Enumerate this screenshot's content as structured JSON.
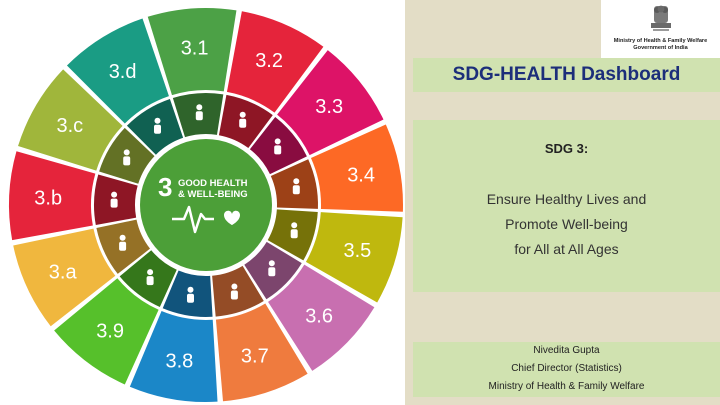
{
  "wheel": {
    "segments": [
      {
        "label": "3.1",
        "color": "#4ca146"
      },
      {
        "label": "3.2",
        "color": "#e5243b"
      },
      {
        "label": "3.3",
        "color": "#dd1367"
      },
      {
        "label": "3.4",
        "color": "#fd6925"
      },
      {
        "label": "3.5",
        "color": "#bfb80e"
      },
      {
        "label": "3.6",
        "color": "#c86fb0"
      },
      {
        "label": "3.7",
        "color": "#ef7b3e"
      },
      {
        "label": "3.8",
        "color": "#1b87c8"
      },
      {
        "label": "3.9",
        "color": "#56c02b"
      },
      {
        "label": "3.a",
        "color": "#f0b73e"
      },
      {
        "label": "3.b",
        "color": "#e5243b"
      },
      {
        "label": "3.c",
        "color": "#a0b63b"
      },
      {
        "label": "3.d",
        "color": "#1a9c84"
      }
    ],
    "center": {
      "number": "3",
      "line1": "GOOD HEALTH",
      "line2": "& WELL-BEING",
      "color": "#4c9f38"
    },
    "icons": [
      "pregnant-woman-icon",
      "mother-baby-5yrs-icon",
      "disease-virus-icon",
      "family-health-icon",
      "pills-heart-icon",
      "no-car-crash-icon",
      "family-planning-icon",
      "health-coverage-icon",
      "hospital-care-icon",
      "no-tobacco-icon",
      "research-medicine-icon",
      "health-workforce-icon",
      "mobile-health-alert-icon"
    ],
    "ekg_icon": "heartbeat-heart-icon"
  },
  "header": {
    "logo_icon": "national-emblem-icon",
    "ministry_line1": "Ministry of Health & Family Welfare",
    "ministry_line2": "Government of India",
    "title": "SDG-HEALTH Dashboard"
  },
  "sdg": {
    "heading": "SDG 3:",
    "goal_lines": [
      "Ensure Healthy Lives and",
      "Promote Well-being",
      "for All at All Ages"
    ]
  },
  "author": {
    "name": "Nivedita Gupta",
    "role": "Chief Director (Statistics)",
    "org": "Ministry of Health & Family Welfare"
  },
  "colors": {
    "title_text": "#1c2e7a",
    "panel_green": "#d0e2b0",
    "beige": "#e3ddc6"
  }
}
